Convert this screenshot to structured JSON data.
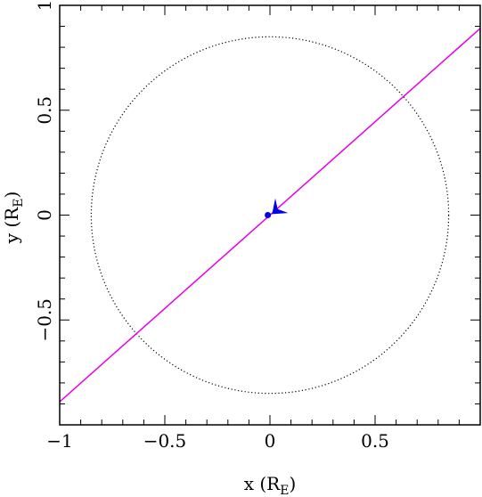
{
  "chart_data": {
    "type": "line",
    "title": "",
    "xlabel": "x (R",
    "xlabel_sub": "E",
    "xlabel_close": ")",
    "ylabel": "y (R",
    "ylabel_sub": "E",
    "ylabel_close": ")",
    "xlim": [
      -1,
      1
    ],
    "ylim": [
      -1,
      1
    ],
    "grid": false,
    "x_ticks": [
      {
        "value": -1,
        "label": "−1"
      },
      {
        "value": -0.5,
        "label": "−0.5"
      },
      {
        "value": 0,
        "label": "0"
      },
      {
        "value": 0.5,
        "label": "0.5"
      }
    ],
    "y_ticks": [
      {
        "value": 1,
        "label": "1"
      },
      {
        "value": 0.5,
        "label": "0.5"
      },
      {
        "value": 0,
        "label": "0"
      },
      {
        "value": -0.5,
        "label": "−0.5"
      }
    ],
    "circle": {
      "cx": 0,
      "cy": 0,
      "r": 0.85,
      "color": "#000000",
      "style": "dotted"
    },
    "line": {
      "points": [
        [
          -1,
          -0.89
        ],
        [
          1,
          0.89
        ]
      ],
      "color": "#e600e6"
    },
    "marker": {
      "x": -0.01,
      "y": 0,
      "color": "#0000e6"
    },
    "arrow": {
      "x": 0.01,
      "y": 0.005,
      "tip_x": 0.05,
      "tip_y": 0.04,
      "color": "#0000e6"
    }
  }
}
